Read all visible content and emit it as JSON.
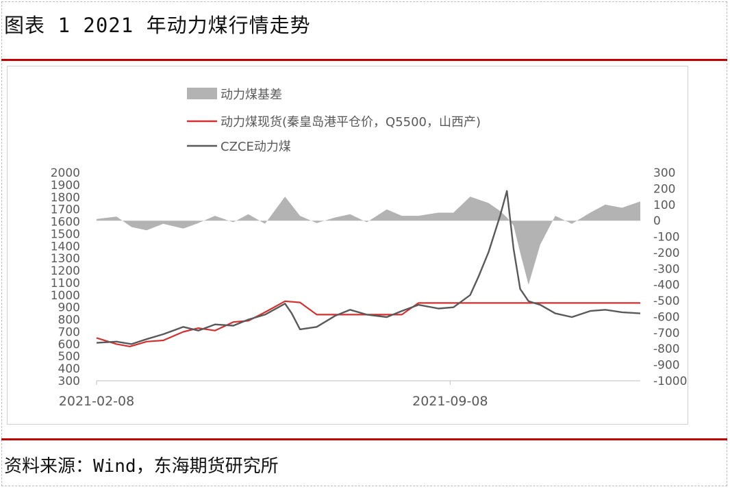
{
  "header": {
    "title": "图表 1 2021 年动力煤行情走势"
  },
  "footer": {
    "source": "资料来源：Wind，东海期货研究所"
  },
  "chart_data": {
    "type": "line",
    "title": "图表 1 2021 年动力煤行情走势",
    "legend": [
      {
        "name": "动力煤基差",
        "kind": "area",
        "color": "#b3b3b3"
      },
      {
        "name": "动力煤现货(秦皇岛港平仓价，Q5500，山西产)",
        "kind": "line",
        "color": "#d32f2f"
      },
      {
        "name": "CZCE动力煤",
        "kind": "line",
        "color": "#595959"
      }
    ],
    "legend_position": "top-center",
    "x_ticks": [
      "2021-02-08",
      "2021-09-08"
    ],
    "x_range": [
      "2021-02-08",
      "2021-12-31"
    ],
    "y_left": {
      "min": 300,
      "max": 2000,
      "ticks": [
        2000,
        1900,
        1800,
        1700,
        1600,
        1500,
        1400,
        1300,
        1200,
        1100,
        1000,
        900,
        800,
        700,
        600,
        500,
        400,
        300
      ]
    },
    "y_right": {
      "min": -1000,
      "max": 300,
      "ticks": [
        300,
        200,
        100,
        0,
        -100,
        -200,
        -300,
        -400,
        -500,
        -600,
        -700,
        -800,
        -900,
        -1000
      ]
    },
    "grid": false,
    "series": [
      {
        "name": "动力煤基差",
        "axis": "right",
        "x": [
          "2021-02-08",
          "2021-02-20",
          "2021-03-01",
          "2021-03-10",
          "2021-03-20",
          "2021-04-01",
          "2021-04-10",
          "2021-04-20",
          "2021-05-01",
          "2021-05-10",
          "2021-05-20",
          "2021-06-01",
          "2021-06-10",
          "2021-06-20",
          "2021-07-01",
          "2021-07-10",
          "2021-07-20",
          "2021-08-01",
          "2021-08-10",
          "2021-08-20",
          "2021-09-01",
          "2021-09-10",
          "2021-09-20",
          "2021-10-01",
          "2021-10-08",
          "2021-10-12",
          "2021-10-16",
          "2021-10-20",
          "2021-10-25",
          "2021-11-01",
          "2021-11-10",
          "2021-11-20",
          "2021-12-01",
          "2021-12-10",
          "2021-12-20",
          "2021-12-31"
        ],
        "values": [
          10,
          25,
          -40,
          -60,
          -20,
          -50,
          -15,
          30,
          -10,
          40,
          -20,
          150,
          30,
          -15,
          20,
          40,
          -10,
          70,
          30,
          30,
          50,
          50,
          150,
          110,
          60,
          20,
          -30,
          -200,
          -400,
          -150,
          30,
          -20,
          50,
          100,
          80,
          120
        ]
      },
      {
        "name": "动力煤现货(秦皇岛港平仓价，Q5500，山西产)",
        "axis": "left",
        "x": [
          "2021-02-08",
          "2021-02-20",
          "2021-02-28",
          "2021-03-10",
          "2021-03-20",
          "2021-04-01",
          "2021-04-10",
          "2021-04-20",
          "2021-05-01",
          "2021-05-10",
          "2021-05-20",
          "2021-06-01",
          "2021-06-10",
          "2021-06-20",
          "2021-07-01",
          "2021-07-20",
          "2021-08-01",
          "2021-08-10",
          "2021-08-20",
          "2021-09-10",
          "2021-10-01",
          "2021-11-01",
          "2021-12-31"
        ],
        "values": [
          650,
          600,
          580,
          620,
          630,
          700,
          730,
          710,
          780,
          790,
          860,
          950,
          940,
          840,
          840,
          840,
          840,
          840,
          935,
          935,
          935,
          935,
          935
        ]
      },
      {
        "name": "CZCE动力煤",
        "axis": "left",
        "x": [
          "2021-02-08",
          "2021-02-20",
          "2021-03-01",
          "2021-03-10",
          "2021-03-20",
          "2021-04-01",
          "2021-04-10",
          "2021-04-20",
          "2021-05-01",
          "2021-05-10",
          "2021-05-20",
          "2021-06-01",
          "2021-06-05",
          "2021-06-10",
          "2021-06-20",
          "2021-07-01",
          "2021-07-10",
          "2021-07-20",
          "2021-08-01",
          "2021-08-10",
          "2021-08-20",
          "2021-09-01",
          "2021-09-10",
          "2021-09-20",
          "2021-09-25",
          "2021-10-01",
          "2021-10-08",
          "2021-10-12",
          "2021-10-16",
          "2021-10-20",
          "2021-10-25",
          "2021-11-01",
          "2021-11-10",
          "2021-11-20",
          "2021-12-01",
          "2021-12-10",
          "2021-12-20",
          "2021-12-31"
        ],
        "values": [
          610,
          620,
          600,
          640,
          680,
          740,
          710,
          760,
          750,
          800,
          840,
          930,
          850,
          720,
          740,
          830,
          880,
          840,
          820,
          870,
          920,
          890,
          900,
          1000,
          1150,
          1350,
          1650,
          1850,
          1380,
          1050,
          950,
          920,
          850,
          820,
          870,
          880,
          860,
          850
        ]
      }
    ]
  }
}
